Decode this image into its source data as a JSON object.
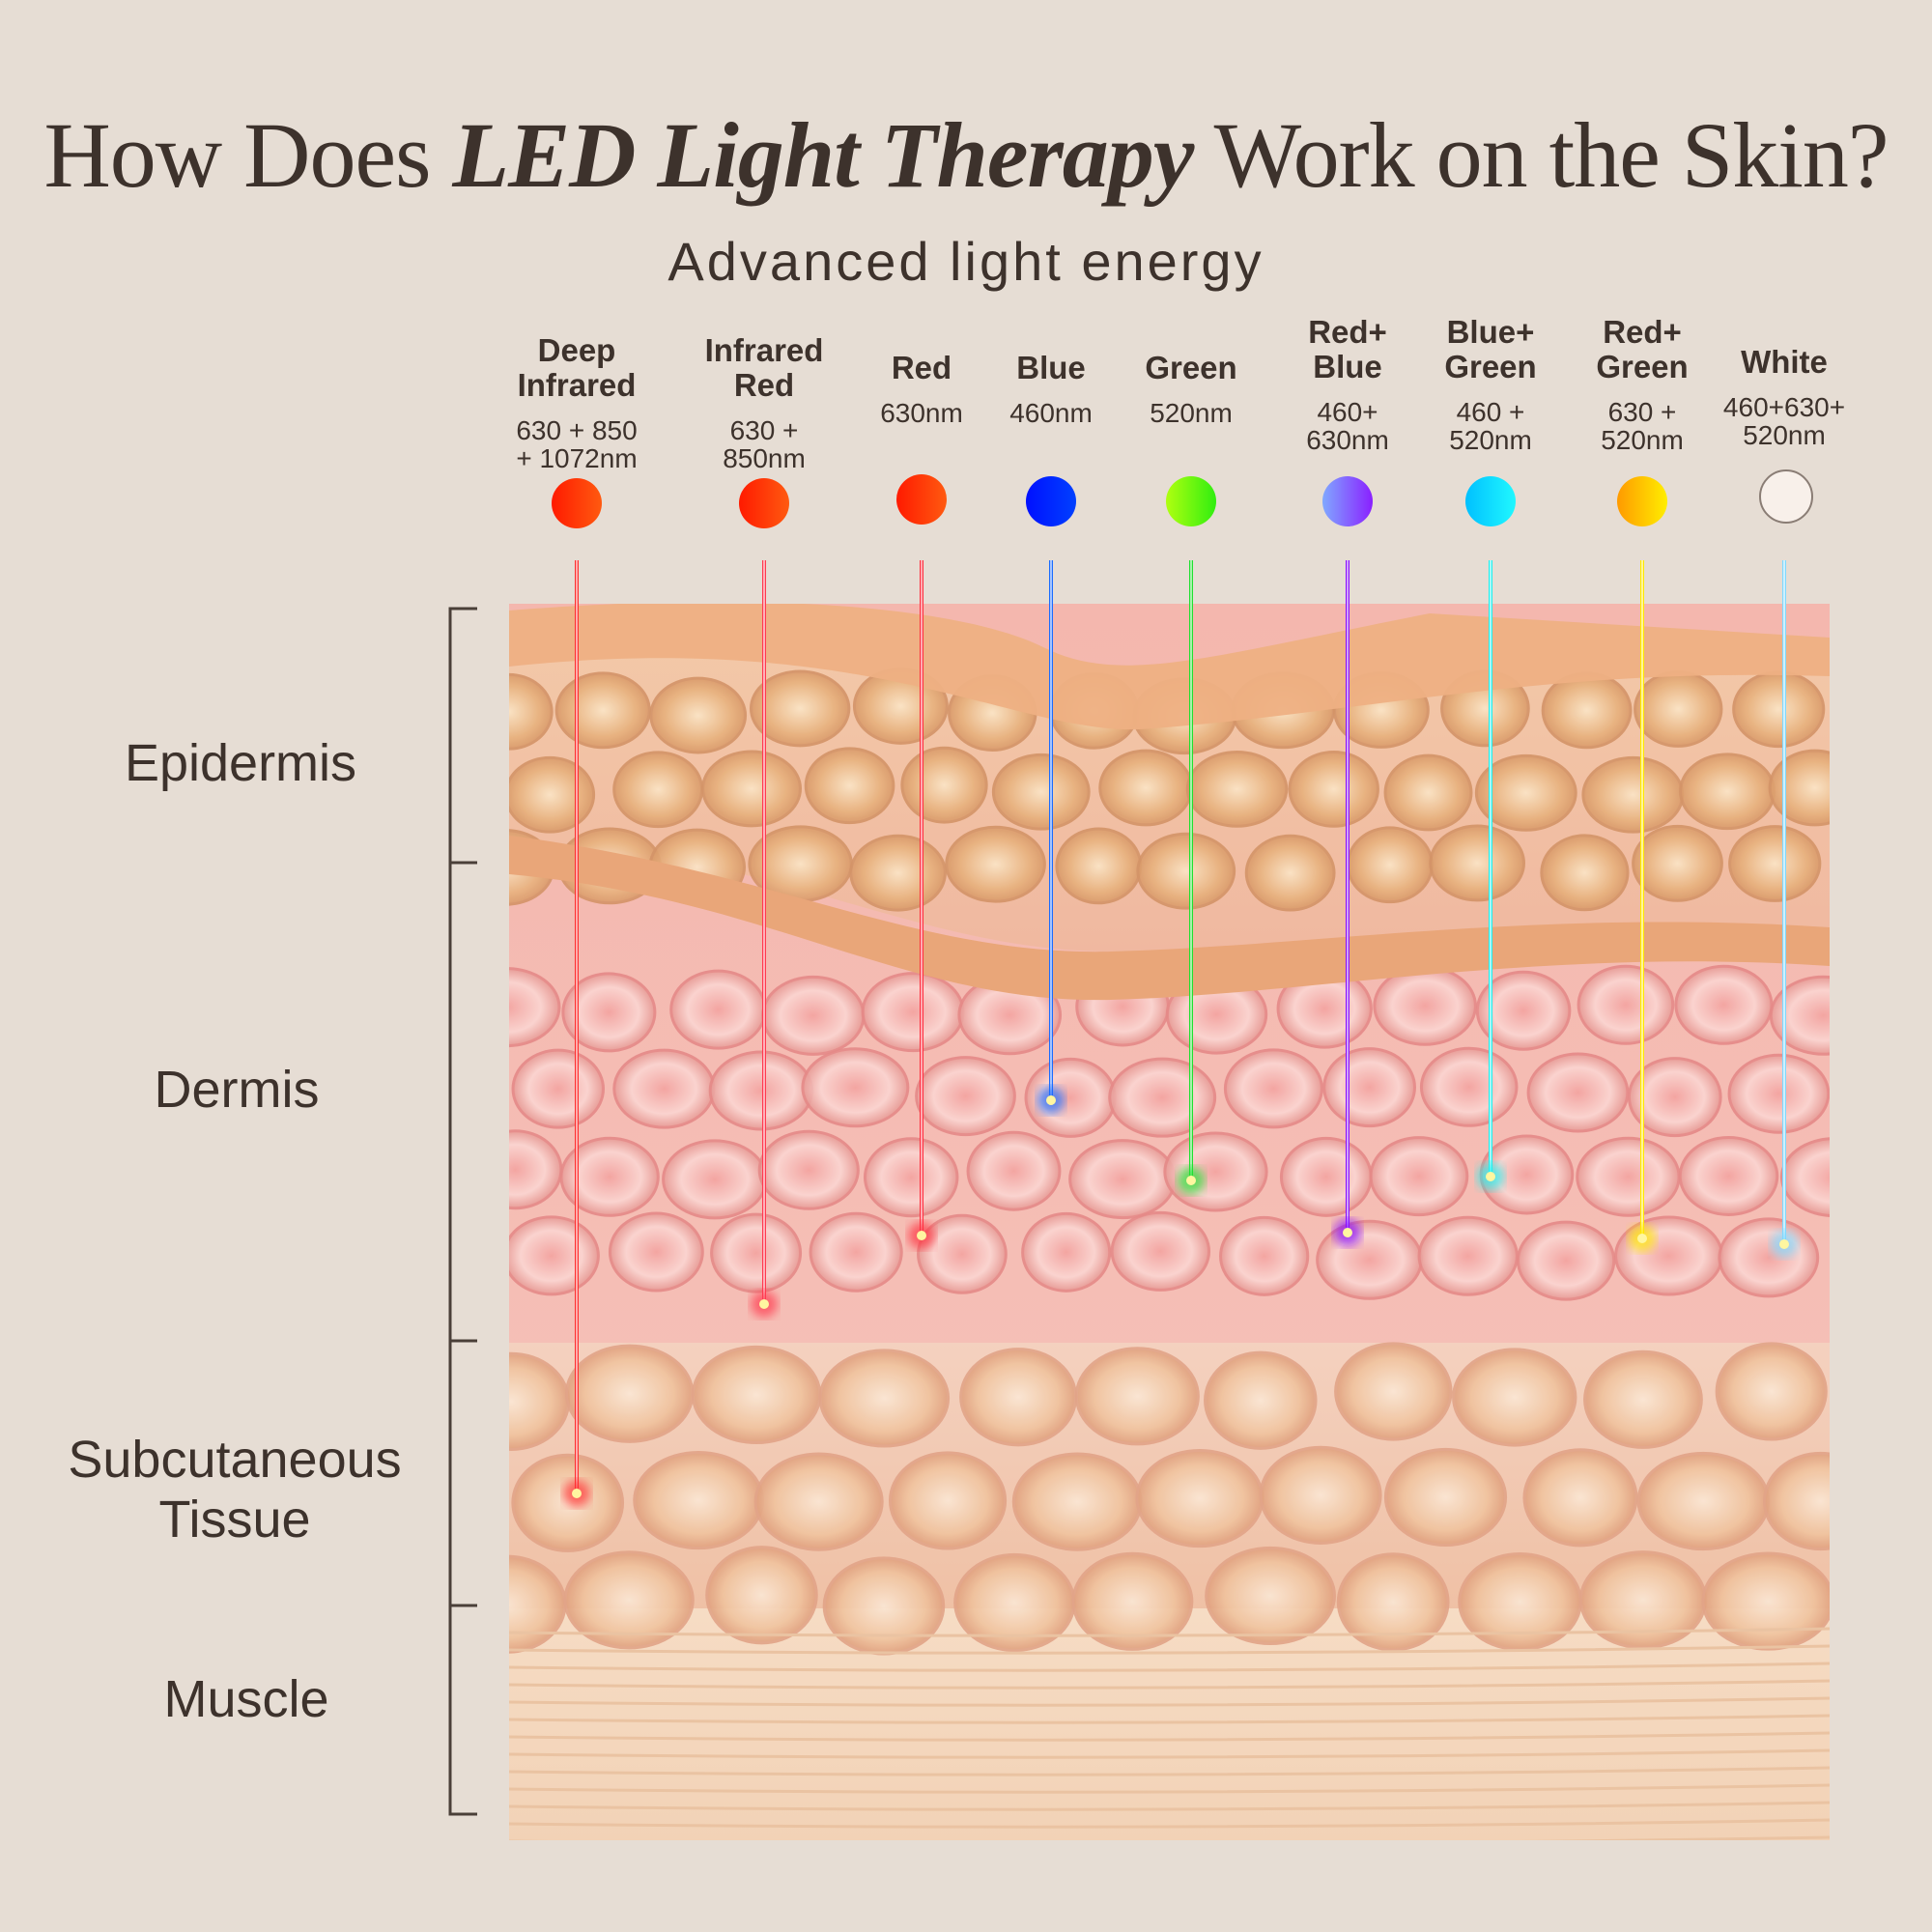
{
  "title": {
    "prefix": "How Does ",
    "emphasis": "LED Light Therapy",
    "suffix": " Work on the Skin?"
  },
  "subtitle": "Advanced light energy",
  "lights": [
    {
      "name": "Deep\nInfrared",
      "wavelength": "630 + 850\n+ 1072nm",
      "color_a": "#ff1a00",
      "color_b": "#ff5a10",
      "beam": "#ff3030",
      "depth_layer": "Subcutaneous Tissue"
    },
    {
      "name": "Infrared\nRed",
      "wavelength": "630 +\n850nm",
      "color_a": "#ff1a00",
      "color_b": "#ff5a10",
      "beam": "#ff3a50",
      "depth_layer": "Dermis"
    },
    {
      "name": "Red",
      "wavelength": "630nm",
      "color_a": "#ff1a00",
      "color_b": "#ff5a10",
      "beam": "#ff3040",
      "depth_layer": "Dermis"
    },
    {
      "name": "Blue",
      "wavelength": "460nm",
      "color_a": "#0010ff",
      "color_b": "#0040ff",
      "beam": "#1a6cff",
      "depth_layer": "Dermis"
    },
    {
      "name": "Green",
      "wavelength": "520nm",
      "color_a": "#b0ff10",
      "color_b": "#30ee10",
      "beam": "#20e030",
      "depth_layer": "Dermis"
    },
    {
      "name": "Red+\nBlue",
      "wavelength": "460+\n630nm",
      "color_a": "#80a8ff",
      "color_b": "#8a20ff",
      "beam": "#8a10ff",
      "depth_layer": "Dermis"
    },
    {
      "name": "Blue+\nGreen",
      "wavelength": "460 +\n520nm",
      "color_a": "#00c0ff",
      "color_b": "#20f8ff",
      "beam": "#20f0f0",
      "depth_layer": "Dermis"
    },
    {
      "name": "Red+\nGreen",
      "wavelength": "630 +\n520nm",
      "color_a": "#ff9a00",
      "color_b": "#ffee00",
      "beam": "#ffe800",
      "depth_layer": "Dermis"
    },
    {
      "name": "White",
      "wavelength": "460+630+\n520nm",
      "color_a": "#f8f0ea",
      "color_b": "#f8f0ea",
      "beam": "#80d8ff",
      "depth_layer": "Dermis"
    }
  ],
  "layers": [
    "Epidermis",
    "Dermis",
    "Subcutaneous\nTissue",
    "Muscle"
  ]
}
